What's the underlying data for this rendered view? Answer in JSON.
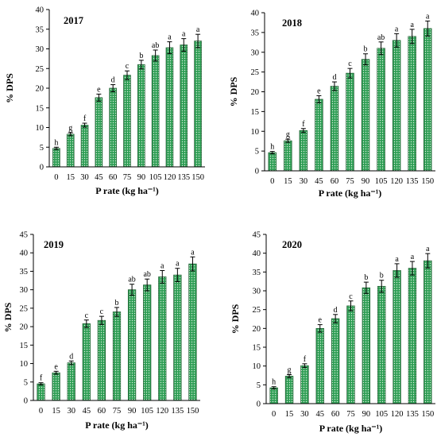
{
  "colors": {
    "bar_fill": "#2f9e55",
    "bar_dot": "#d8f0dc",
    "axis": "#000000"
  },
  "chart_data": [
    {
      "type": "bar",
      "title": "2017",
      "xlabel": "P rate  (kg ha⁻¹)",
      "ylabel": "% DPS",
      "ylim": [
        0,
        40
      ],
      "yticks": [
        0,
        5,
        10,
        15,
        20,
        25,
        30,
        35,
        40
      ],
      "categories": [
        "0",
        "15",
        "30",
        "45",
        "60",
        "75",
        "90",
        "105",
        "120",
        "135",
        "150"
      ],
      "values": [
        4.7,
        8.3,
        10.6,
        17.6,
        20.0,
        23.3,
        26.0,
        28.3,
        30.3,
        31.0,
        32.0
      ],
      "errors": [
        0.3,
        0.4,
        0.5,
        0.9,
        0.9,
        1.1,
        1.1,
        1.4,
        1.5,
        1.6,
        1.7
      ],
      "letters": [
        "h",
        "g",
        "f",
        "e",
        "d",
        "c",
        "b",
        "ab",
        "a",
        "a",
        "a"
      ]
    },
    {
      "type": "bar",
      "title": "2018",
      "xlabel": "P rate  (kg ha⁻¹)",
      "ylabel": "% DPS",
      "ylim": [
        0,
        40
      ],
      "yticks": [
        0,
        5,
        10,
        15,
        20,
        25,
        30,
        35,
        40
      ],
      "categories": [
        "0",
        "15",
        "30",
        "45",
        "60",
        "75",
        "90",
        "105",
        "120",
        "135",
        "150"
      ],
      "values": [
        4.6,
        7.6,
        10.2,
        18.1,
        21.4,
        24.7,
        28.2,
        31.0,
        33.0,
        34.0,
        36.0
      ],
      "errors": [
        0.3,
        0.4,
        0.5,
        0.9,
        1.1,
        1.2,
        1.4,
        1.6,
        1.7,
        1.8,
        1.9
      ],
      "letters": [
        "h",
        "g",
        "f",
        "e",
        "d",
        "c",
        "b",
        "ab",
        "a",
        "a",
        "a"
      ]
    },
    {
      "type": "bar",
      "title": "2019",
      "xlabel": "P rate  (kg ha⁻¹)",
      "ylabel": "% DPS",
      "ylim": [
        0,
        45
      ],
      "yticks": [
        0,
        5,
        10,
        15,
        20,
        25,
        30,
        35,
        40,
        45
      ],
      "categories": [
        "0",
        "15",
        "30",
        "45",
        "60",
        "75",
        "90",
        "105",
        "120",
        "135",
        "150"
      ],
      "values": [
        4.5,
        7.5,
        10.2,
        20.8,
        21.7,
        24.0,
        30.0,
        31.3,
        33.5,
        34.0,
        37.0
      ],
      "errors": [
        0.3,
        0.4,
        0.5,
        1.0,
        1.1,
        1.2,
        1.5,
        1.6,
        1.7,
        1.8,
        1.9
      ],
      "letters": [
        "f",
        "e",
        "d",
        "c",
        "c",
        "b",
        "ab",
        "ab",
        "a",
        "a",
        "a"
      ]
    },
    {
      "type": "bar",
      "title": "2020",
      "xlabel": "P rate  (kg ha⁻¹)",
      "ylabel": "% DPS",
      "ylim": [
        0,
        45
      ],
      "yticks": [
        0,
        5,
        10,
        15,
        20,
        25,
        30,
        35,
        40,
        45
      ],
      "categories": [
        "0",
        "15",
        "30",
        "45",
        "60",
        "75",
        "90",
        "105",
        "120",
        "135",
        "150"
      ],
      "values": [
        4.2,
        7.3,
        10.1,
        20.0,
        22.6,
        26.0,
        30.8,
        31.2,
        35.4,
        36.0,
        38.0
      ],
      "errors": [
        0.3,
        0.4,
        0.5,
        1.0,
        1.1,
        1.3,
        1.5,
        1.6,
        1.8,
        1.8,
        1.9
      ],
      "letters": [
        "h",
        "g",
        "f",
        "e",
        "d",
        "c",
        "b",
        "b",
        "a",
        "a",
        "a"
      ]
    }
  ]
}
